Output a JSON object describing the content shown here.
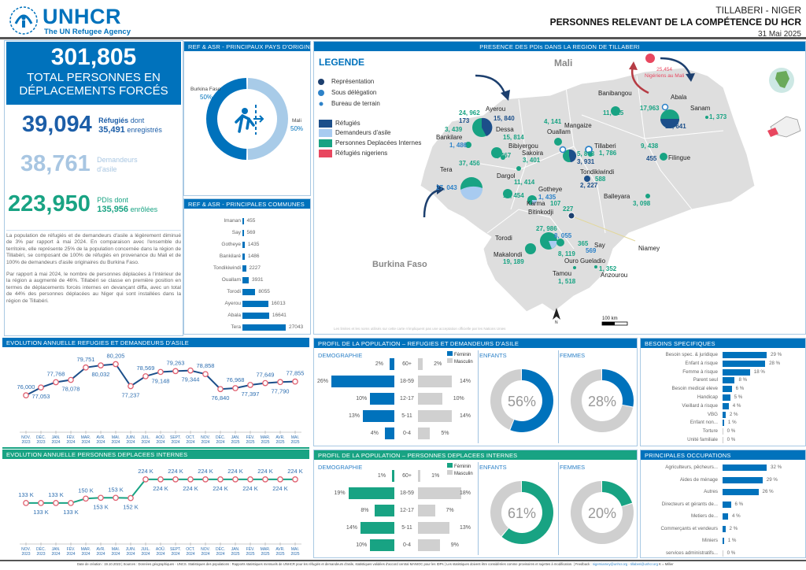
{
  "header": {
    "org_name": "UNHCR",
    "org_tagline": "The UN Refugee Agency",
    "location": "TILLABERI - NIGER",
    "title": "PERSONNES RELEVANT DE LA COMPÉTENCE DU HCR",
    "date": "31 Mai 2025"
  },
  "kpis": {
    "total": "301,805",
    "total_label_1": "TOTAL PERSONNES EN",
    "total_label_2": "DÉPLACEMENTS FORCÉS",
    "refugees": "39,094",
    "refugees_label": "Réfugiés",
    "refugees_dont": "dont",
    "refugees_registered": "35,491",
    "refugees_registered_label": "enregistrés",
    "asylum": "38,761",
    "asylum_label_1": "Demandeurs",
    "asylum_label_2": "d'asile",
    "idp": "223,950",
    "idp_label": "PDIs",
    "idp_dont": "dont",
    "idp_enrolled": "135,956",
    "idp_enrolled_label": "enrôlées"
  },
  "narrative": {
    "p1": "La population de réfugiés et de demandeurs d'asile a légèrement diminué de 3% par rapport à mai 2024. En comparaison avec l'ensemble du territoire, elle représente 25% de la population concernée dans la région de Tillabéri, se composant de 100% de réfugiés en provenance du Mali et de 100% de demandeurs d'asile originaires du Burkina Faso.",
    "p2": "Par rapport à mai 2024, le nombre de personnes déplacées à l'intérieur de la région a augmenté de 46%. Tillabéri se classe en première position en termes de déplacements forcés internes en devançant diffa, avec un total de 44% des personnes déplacées au Niger qui sont installées dans la région de Tillabéri."
  },
  "origin": {
    "title": "REF & ASR - PRINCIPAUX PAYS D'ORIGINE",
    "slices": [
      {
        "label": "Burkina Faso",
        "pct": "50%",
        "value": 50,
        "color": "#0072bc"
      },
      {
        "label": "Mali",
        "pct": "50%",
        "value": 50,
        "color": "#a8cbe8"
      }
    ]
  },
  "communes": {
    "title": "REF & ASR - PRINCIPALES COMMUNES",
    "rows": [
      {
        "label": "Imanan",
        "value": 455
      },
      {
        "label": "Say",
        "value": 569
      },
      {
        "label": "Gotheye",
        "value": 1435
      },
      {
        "label": "Bankilaré",
        "value": 1486
      },
      {
        "label": "Tondikiwindi",
        "value": 2227
      },
      {
        "label": "Ouallam",
        "value": 3931
      },
      {
        "label": "Torodi",
        "value": 8055
      },
      {
        "label": "Ayerou",
        "value": 16013
      },
      {
        "label": "Abala",
        "value": 16641
      },
      {
        "label": "Tera",
        "value": 27043
      }
    ]
  },
  "map": {
    "title": "PRESENCE DES PDIs DANS LA REGION DE TILLABERI",
    "legend_title": "LEGENDE",
    "legend_offices": [
      "Représentation",
      "Sous délégation",
      "Bureau de terrain"
    ],
    "legend_pops": [
      {
        "label": "Réfugiés",
        "color": "#1c4f8a"
      },
      {
        "label": "Demandeurs d'asile",
        "color": "#a8cbf0"
      },
      {
        "label": "Personnes Deplacées Internes",
        "color": "#18a383"
      },
      {
        "label": "Réfugiés nigeriens",
        "color": "#e8475f"
      }
    ],
    "country_mali": "Mali",
    "country_bf": "Burkina Faso",
    "nigeriens_value": "25,454",
    "nigeriens_label": "Nigériens au Mali",
    "scale": "100 km",
    "north": "N",
    "disclaimer": "Les limites et les noms utilisés sur cette carte n'impliquent pas une acceptation officielle par les Nations Unies",
    "places": [
      {
        "name": "Ayerou"
      },
      {
        "name": "Bankilare"
      },
      {
        "name": "Dessa"
      },
      {
        "name": "Bibiyergou"
      },
      {
        "name": "Sakoira"
      },
      {
        "name": "Tera"
      },
      {
        "name": "Dargol"
      },
      {
        "name": "Gotheye"
      },
      {
        "name": "Karma"
      },
      {
        "name": "Bitinkodji"
      },
      {
        "name": "Mangaize"
      },
      {
        "name": "Ouallam"
      },
      {
        "name": "Tillaberi"
      },
      {
        "name": "Tondikiwindi"
      },
      {
        "name": "Banibangou"
      },
      {
        "name": "Abala"
      },
      {
        "name": "Sanam"
      },
      {
        "name": "Filingue"
      },
      {
        "name": "Balleyara"
      },
      {
        "name": "Torodi"
      },
      {
        "name": "Makalondi"
      },
      {
        "name": "Say"
      },
      {
        "name": "Ouro Gueladio"
      },
      {
        "name": "Tamou"
      },
      {
        "name": "Anzourou"
      },
      {
        "name": "Niamey"
      }
    ],
    "values": {
      "ayerou_idp": "24, 962",
      "ayerou_asr": "173",
      "ayerou_ref": "15, 840",
      "bankilare_idp": "3, 439",
      "bankilare_asr": "1, 486",
      "dessa_idp": "15, 814",
      "bibiyergou_idp": "2, 467",
      "sakoira_idp": "3, 401",
      "tera_idp": "37, 456",
      "tera_asr": "27, 043",
      "dargol_idp": "11, 414",
      "gotheye_idp": "10, 454",
      "gotheye_asr": "1, 435",
      "karma_idp": "107",
      "bitinkodji_idp": "227",
      "mangaize_idp": "4, 141",
      "ouallam_idp": "5, 868",
      "ouallam_ref": "3, 931",
      "tillaberi_idp": "1, 786",
      "tondi_idp": "588",
      "tondi_ref": "2, 227",
      "banibangou_idp": "11, 425",
      "abala_idp": "17,963",
      "abala_ref": "16, 641",
      "sanam_idp": "1, 373",
      "filingue_idp": "9, 438",
      "filingue_ref": "455",
      "balleyara_idp": "3, 098",
      "torodi_idp": "27, 986",
      "torodi_asr": "8, 055",
      "makalondi_idp": "19, 189",
      "say_idp": "365",
      "say_asr": "569",
      "ourog_idp": "8, 119",
      "tamou_idp": "1, 518",
      "anzourou_idp": "1, 352"
    }
  },
  "chart_data": [
    {
      "type": "line",
      "title": "EVOLUTION ANNUELLE REFUGIES ET DEMANDEURS D'ASILE",
      "categories": [
        "NOV. 2023",
        "DÉC. 2023",
        "JAN. 2024",
        "FÉV. 2024",
        "MAR. 2024",
        "AVR. 2024",
        "MAI. 2024",
        "JUIN. 2024",
        "JUIL. 2024",
        "AOÛ. 2024",
        "SEPT. 2024",
        "OCT. 2024",
        "NOV. 2024",
        "DÉC. 2024",
        "JAN. 2025",
        "FÉV. 2025",
        "MAR. 2025",
        "AVR. 2025",
        "MAI. 2025"
      ],
      "values": [
        76000,
        77053,
        77768,
        78078,
        79751,
        80032,
        80205,
        77237,
        78569,
        79148,
        79263,
        79344,
        78858,
        76840,
        76968,
        77397,
        77649,
        77790,
        77855
      ],
      "labels": [
        "76,000",
        "77,053",
        "77,768",
        "78,078",
        "79,751",
        "80,032",
        "80,205",
        "77,237",
        "78,569",
        "79,148",
        "79,263",
        "79,344",
        "78,858",
        "76,840",
        "76,968",
        "77,397",
        "77,649",
        "77,790",
        "77,855"
      ],
      "color": "#1c4f8a",
      "marker_color": "#e06070",
      "ylim": [
        74000,
        81000
      ]
    },
    {
      "type": "line",
      "title": "EVOLUTION ANNUELLE PERSONNES DEPLACEES INTERNES",
      "categories": [
        "NOV. 2023",
        "DÉC. 2023",
        "JAN. 2024",
        "FÉV. 2024",
        "MAR. 2024",
        "AVR. 2024",
        "MAI. 2024",
        "JUIN. 2024",
        "JUIL. 2024",
        "AOÛ. 2024",
        "SEPT. 2024",
        "OCT. 2024",
        "NOV. 2024",
        "DÉC. 2024",
        "JAN. 2025",
        "FÉV. 2025",
        "MAR. 2025",
        "AVR. 2025",
        "MAI. 2025"
      ],
      "values": [
        133,
        133,
        133,
        133,
        150,
        153,
        153,
        152,
        224,
        224,
        224,
        224,
        224,
        224,
        224,
        224,
        224,
        224,
        224
      ],
      "labels": [
        "133 K",
        "133 K",
        "133 K",
        "133 K",
        "150 K",
        "153 K",
        "153 K",
        "152 K",
        "224 K",
        "224 K",
        "224 K",
        "224 K",
        "224 K",
        "224 K",
        "224 K",
        "224 K",
        "224 K",
        "224 K",
        "224 K"
      ],
      "unit": "K",
      "color": "#18a383",
      "marker_color": "#e06070",
      "ylim": [
        60,
        260
      ]
    },
    {
      "type": "bar",
      "title": "PROFIL DE LA POPULATION – REFUGIES ET DEMANDEURS D'ASILE",
      "subtitle": "DEMOGRAPHIE",
      "categories": [
        "60+",
        "18-59",
        "12-17",
        "5-11",
        "0-4"
      ],
      "series": [
        {
          "name": "Féminin",
          "values": [
            2,
            26,
            10,
            13,
            4
          ],
          "color": "#0072bc"
        },
        {
          "name": "Masculin",
          "values": [
            2,
            14,
            10,
            14,
            5
          ],
          "color": "#d0d0d0"
        }
      ],
      "donuts": [
        {
          "label": "ENFANTS",
          "value": 56
        },
        {
          "label": "FEMMES",
          "value": 28
        }
      ]
    },
    {
      "type": "bar",
      "title": "PROFIL DE LA POPULATION – PERSONNES DEPLACEES INTERNES",
      "subtitle": "DEMOGRAPHIE",
      "categories": [
        "60+",
        "18-59",
        "12-17",
        "5-11",
        "0-4"
      ],
      "series": [
        {
          "name": "Féminin",
          "values": [
            1,
            19,
            8,
            14,
            10
          ],
          "color": "#18a383"
        },
        {
          "name": "Masculin",
          "values": [
            1,
            18,
            7,
            13,
            9
          ],
          "color": "#d0d0d0"
        }
      ],
      "donuts": [
        {
          "label": "ENFANTS",
          "value": 61
        },
        {
          "label": "FEMMES",
          "value": 20
        }
      ]
    },
    {
      "type": "bar",
      "title": "BESOINS SPECIFIQUES",
      "categories": [
        "Besoin spec. & juridique",
        "Enfant à risque",
        "Femme à risque",
        "Parent seul",
        "Besoin medical eleve",
        "Handicap",
        "Vieillard à risque",
        "VBG",
        "Enfant non...",
        "Torture",
        "Unité familiale"
      ],
      "values": [
        29,
        28,
        18,
        8,
        6,
        5,
        4,
        2,
        1,
        0,
        0
      ],
      "unit": "%"
    },
    {
      "type": "bar",
      "title": "PRINCIPALES OCCUPATIONS",
      "categories": [
        "Agriculteurs, pêcheurs...",
        "Aides de ménage",
        "Autres",
        "Directeurs et gérants de...",
        "Metiers de...",
        "Commerçants et vendeurs",
        "Miniers",
        "services administratifs..."
      ],
      "values": [
        32,
        29,
        26,
        6,
        4,
        2,
        1,
        0
      ],
      "unit": "%"
    }
  ],
  "footer": {
    "text": "Date de création : 19.10.2023 | Sources : Données géographiques - UNCS. Statistiques des populations : Rapports statistiques mensuels de UNHCR pour les réfugiés et demandeurs d'asile, statistiques validées d'accord central MANIOC pour les IDPs | Les statistiques doivent être considérées comme provisoires et sujettes à modification. | Feedback :",
    "link1": "nigerniamey@unhcr.org",
    "link2": "tillaberi@unhcr.org",
    "unit_note": "K = Millier"
  }
}
